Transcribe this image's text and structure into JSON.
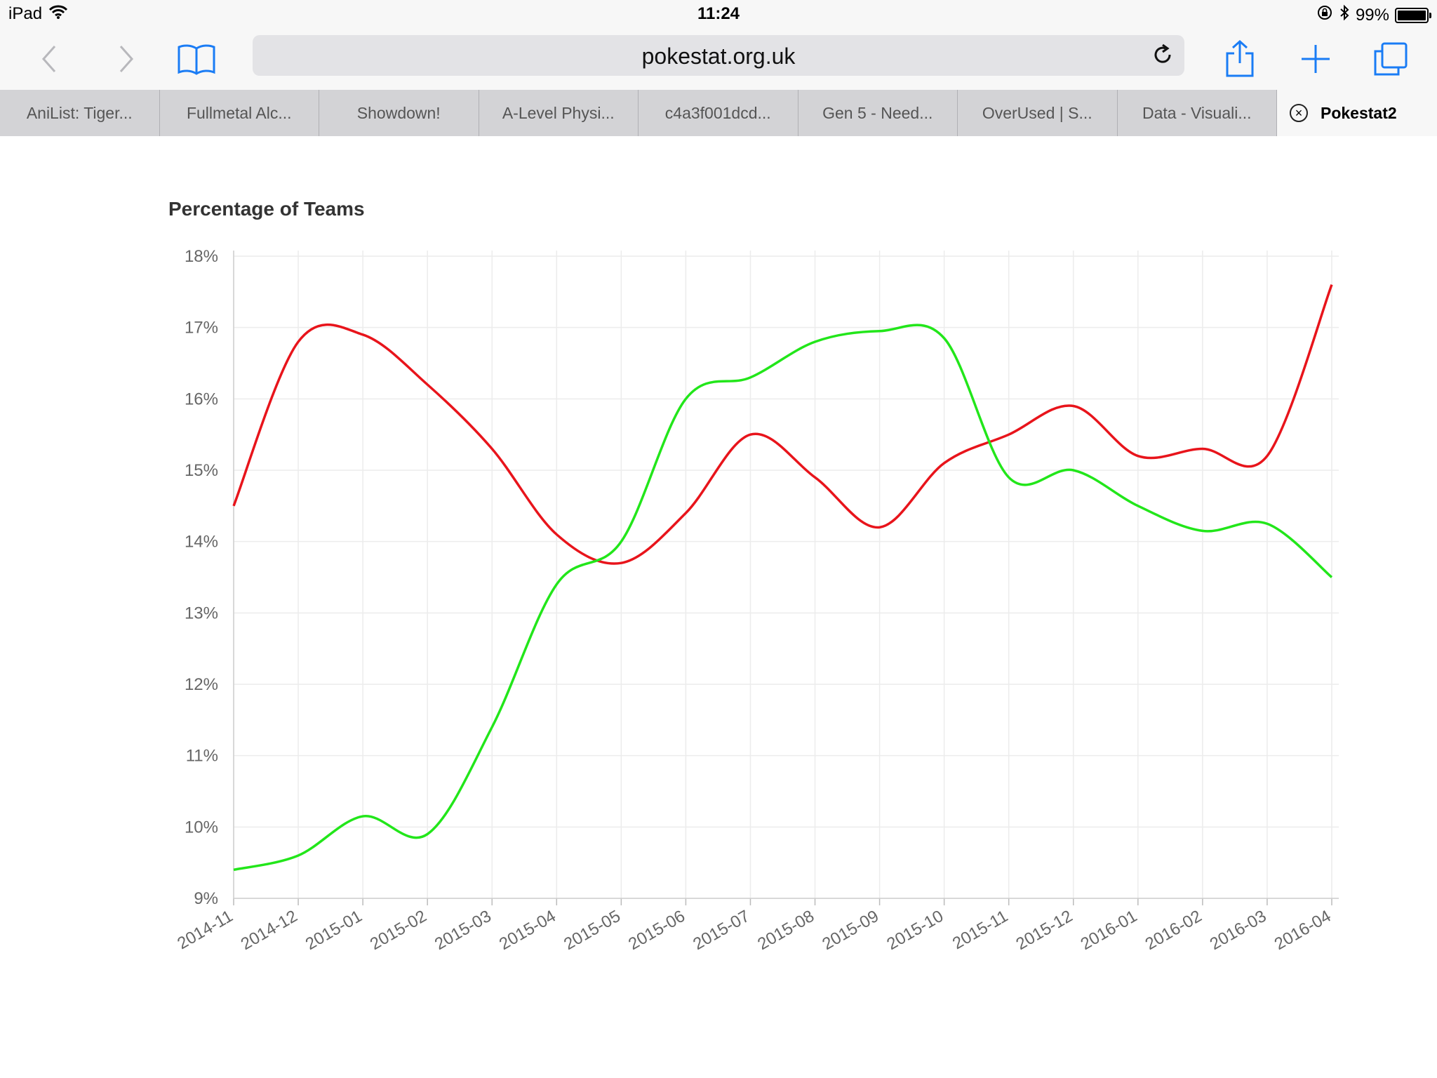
{
  "status_bar": {
    "device": "iPad",
    "time": "11:24",
    "battery": "99%",
    "battery_level": 0.99
  },
  "toolbar": {
    "url": "pokestat.org.uk"
  },
  "tabs": [
    {
      "label": "AniList: Tiger..."
    },
    {
      "label": "Fullmetal Alc..."
    },
    {
      "label": "Showdown!"
    },
    {
      "label": "A-Level Physi..."
    },
    {
      "label": "c4a3f001dcd..."
    },
    {
      "label": "Gen 5 - Need..."
    },
    {
      "label": "OverUsed | S..."
    },
    {
      "label": "Data - Visuali..."
    },
    {
      "label": "Pokestat2",
      "active": true
    }
  ],
  "colors": {
    "red_series": "#e8141b",
    "green_series": "#22e61a",
    "accent_blue": "#1a7cf5"
  },
  "chart_data": {
    "type": "line",
    "title": "Percentage of Teams",
    "x": [
      "2014-11",
      "2014-12",
      "2015-01",
      "2015-02",
      "2015-03",
      "2015-04",
      "2015-05",
      "2015-06",
      "2015-07",
      "2015-08",
      "2015-09",
      "2015-10",
      "2015-11",
      "2015-12",
      "2016-01",
      "2016-02",
      "2016-03",
      "2016-04"
    ],
    "y_ticks": [
      "9%",
      "10%",
      "11%",
      "12%",
      "13%",
      "14%",
      "15%",
      "16%",
      "17%",
      "18%"
    ],
    "ylim": [
      9,
      18
    ],
    "grid": true,
    "series": [
      {
        "color": "#e8141b",
        "values": [
          14.5,
          16.8,
          16.9,
          16.2,
          15.3,
          14.1,
          13.7,
          14.4,
          15.5,
          14.9,
          14.2,
          15.1,
          15.5,
          15.9,
          15.2,
          15.3,
          15.2,
          17.6
        ]
      },
      {
        "color": "#22e61a",
        "values": [
          9.4,
          9.6,
          10.15,
          9.9,
          11.4,
          13.4,
          14.0,
          16.0,
          16.3,
          16.8,
          16.95,
          16.85,
          14.9,
          15.0,
          14.5,
          14.15,
          14.25,
          13.5
        ]
      }
    ]
  }
}
